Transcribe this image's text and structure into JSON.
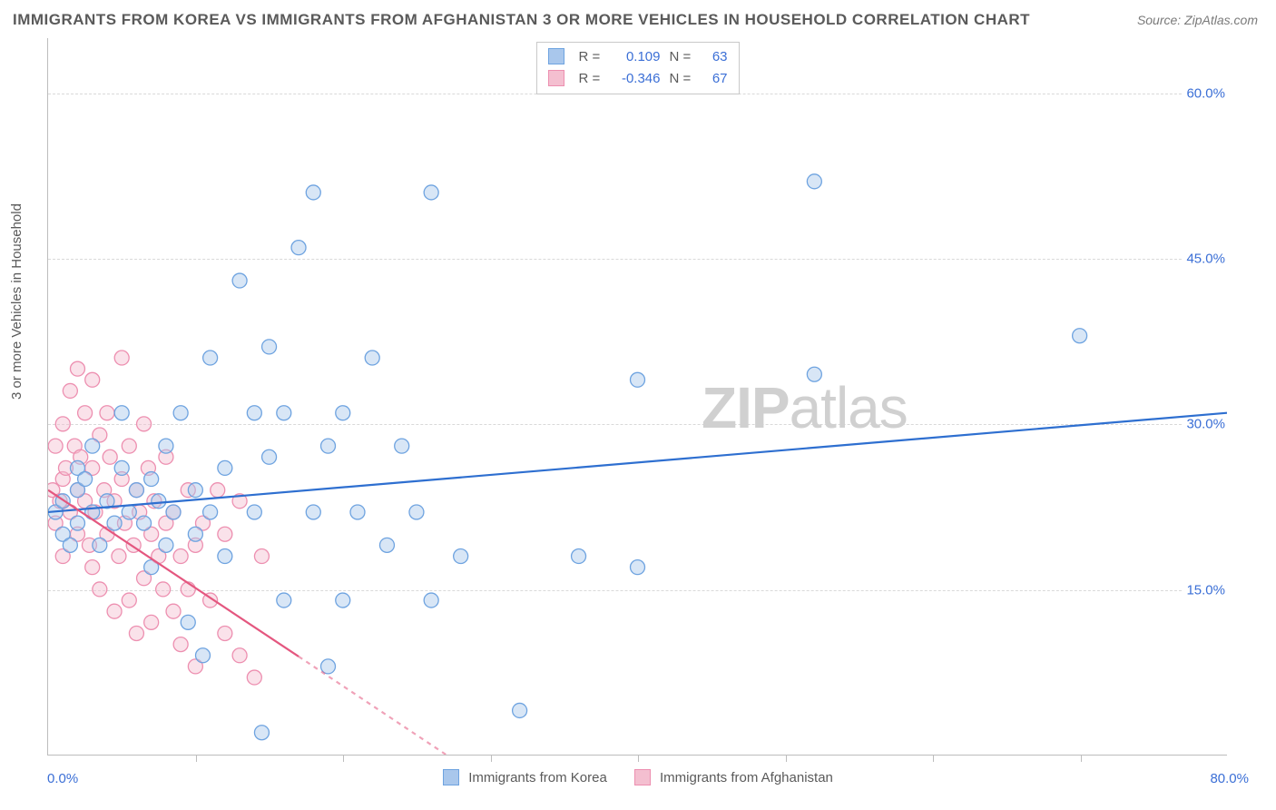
{
  "title": "IMMIGRANTS FROM KOREA VS IMMIGRANTS FROM AFGHANISTAN 3 OR MORE VEHICLES IN HOUSEHOLD CORRELATION CHART",
  "source": "Source: ZipAtlas.com",
  "ylabel": "3 or more Vehicles in Household",
  "watermark_bold": "ZIP",
  "watermark_light": "atlas",
  "chart": {
    "type": "scatter",
    "background_color": "#ffffff",
    "grid_color": "#d9d9d9",
    "axis_color": "#bdbdbd",
    "label_color": "#5a5a5a",
    "tick_label_color": "#3b6fd6",
    "title_fontsize": 17,
    "label_fontsize": 15,
    "xlim": [
      0,
      80
    ],
    "ylim": [
      0,
      65
    ],
    "yticks": [
      15,
      30,
      45,
      60
    ],
    "ytick_labels": [
      "15.0%",
      "30.0%",
      "45.0%",
      "60.0%"
    ],
    "xtick_positions": [
      10,
      20,
      30,
      40,
      50,
      60,
      70
    ],
    "x_min_label": "0.0%",
    "x_max_label": "80.0%",
    "marker_radius": 8,
    "marker_opacity": 0.45,
    "line_width": 2.2,
    "regression_dash_outside": "5,5",
    "series": [
      {
        "name": "Immigrants from Korea",
        "color_fill": "#a9c7ec",
        "color_stroke": "#6ea3e0",
        "line_color": "#2e6fd0",
        "R": "0.109",
        "N": "63",
        "regression": {
          "x1": 0,
          "y1": 22.0,
          "x2": 80,
          "y2": 31.0
        },
        "points": [
          [
            0.5,
            22
          ],
          [
            1,
            20
          ],
          [
            1,
            23
          ],
          [
            1.5,
            19
          ],
          [
            2,
            24
          ],
          [
            2,
            21
          ],
          [
            2,
            26
          ],
          [
            2.5,
            25
          ],
          [
            3,
            22
          ],
          [
            3,
            28
          ],
          [
            3.5,
            19
          ],
          [
            4,
            23
          ],
          [
            4.5,
            21
          ],
          [
            5,
            26
          ],
          [
            5,
            31
          ],
          [
            5.5,
            22
          ],
          [
            6,
            24
          ],
          [
            6.5,
            21
          ],
          [
            7,
            25
          ],
          [
            7,
            17
          ],
          [
            7.5,
            23
          ],
          [
            8,
            28
          ],
          [
            8,
            19
          ],
          [
            8.5,
            22
          ],
          [
            9,
            31
          ],
          [
            9.5,
            12
          ],
          [
            10,
            24
          ],
          [
            10,
            20
          ],
          [
            10.5,
            9
          ],
          [
            11,
            22
          ],
          [
            11,
            36
          ],
          [
            12,
            26
          ],
          [
            12,
            18
          ],
          [
            13,
            43
          ],
          [
            14,
            31
          ],
          [
            14,
            22
          ],
          [
            14.5,
            2
          ],
          [
            15,
            27
          ],
          [
            15,
            37
          ],
          [
            16,
            14
          ],
          [
            16,
            31
          ],
          [
            17,
            46
          ],
          [
            18,
            22
          ],
          [
            18,
            51
          ],
          [
            19,
            28
          ],
          [
            19,
            8
          ],
          [
            20,
            31
          ],
          [
            20,
            14
          ],
          [
            21,
            22
          ],
          [
            22,
            36
          ],
          [
            23,
            19
          ],
          [
            24,
            28
          ],
          [
            25,
            22
          ],
          [
            26,
            14
          ],
          [
            26,
            51
          ],
          [
            28,
            18
          ],
          [
            32,
            4
          ],
          [
            36,
            18
          ],
          [
            40,
            34
          ],
          [
            40,
            17
          ],
          [
            52,
            34.5
          ],
          [
            52,
            52
          ],
          [
            70,
            38
          ]
        ]
      },
      {
        "name": "Immigrants from Afghanistan",
        "color_fill": "#f4bfd0",
        "color_stroke": "#ed8fb0",
        "line_color": "#e4577f",
        "R": "-0.346",
        "N": "67",
        "regression": {
          "x1": 0,
          "y1": 24.0,
          "x2": 27,
          "y2": 0.0
        },
        "regression_extend": {
          "x1": 17,
          "y1": 8.9,
          "x2": 27,
          "y2": 0.0
        },
        "points": [
          [
            0.3,
            24
          ],
          [
            0.5,
            21
          ],
          [
            0.5,
            28
          ],
          [
            0.8,
            23
          ],
          [
            1,
            25
          ],
          [
            1,
            30
          ],
          [
            1,
            18
          ],
          [
            1.2,
            26
          ],
          [
            1.5,
            22
          ],
          [
            1.5,
            33
          ],
          [
            1.8,
            28
          ],
          [
            2,
            24
          ],
          [
            2,
            35
          ],
          [
            2,
            20
          ],
          [
            2.2,
            27
          ],
          [
            2.5,
            31
          ],
          [
            2.5,
            23
          ],
          [
            2.8,
            19
          ],
          [
            3,
            26
          ],
          [
            3,
            34
          ],
          [
            3,
            17
          ],
          [
            3.2,
            22
          ],
          [
            3.5,
            29
          ],
          [
            3.5,
            15
          ],
          [
            3.8,
            24
          ],
          [
            4,
            31
          ],
          [
            4,
            20
          ],
          [
            4.2,
            27
          ],
          [
            4.5,
            23
          ],
          [
            4.5,
            13
          ],
          [
            4.8,
            18
          ],
          [
            5,
            25
          ],
          [
            5,
            36
          ],
          [
            5.2,
            21
          ],
          [
            5.5,
            28
          ],
          [
            5.5,
            14
          ],
          [
            5.8,
            19
          ],
          [
            6,
            24
          ],
          [
            6,
            11
          ],
          [
            6.2,
            22
          ],
          [
            6.5,
            30
          ],
          [
            6.5,
            16
          ],
          [
            6.8,
            26
          ],
          [
            7,
            20
          ],
          [
            7,
            12
          ],
          [
            7.2,
            23
          ],
          [
            7.5,
            18
          ],
          [
            7.8,
            15
          ],
          [
            8,
            21
          ],
          [
            8,
            27
          ],
          [
            8.5,
            13
          ],
          [
            8.5,
            22
          ],
          [
            9,
            18
          ],
          [
            9,
            10
          ],
          [
            9.5,
            15
          ],
          [
            9.5,
            24
          ],
          [
            10,
            19
          ],
          [
            10,
            8
          ],
          [
            10.5,
            21
          ],
          [
            11,
            14
          ],
          [
            11.5,
            24
          ],
          [
            12,
            11
          ],
          [
            12,
            20
          ],
          [
            13,
            9
          ],
          [
            13,
            23
          ],
          [
            14,
            7
          ],
          [
            14.5,
            18
          ]
        ]
      }
    ],
    "bottom_legend": [
      {
        "label": "Immigrants from Korea",
        "fill": "#a9c7ec",
        "stroke": "#6ea3e0"
      },
      {
        "label": "Immigrants from Afghanistan",
        "fill": "#f4bfd0",
        "stroke": "#ed8fb0"
      }
    ]
  }
}
